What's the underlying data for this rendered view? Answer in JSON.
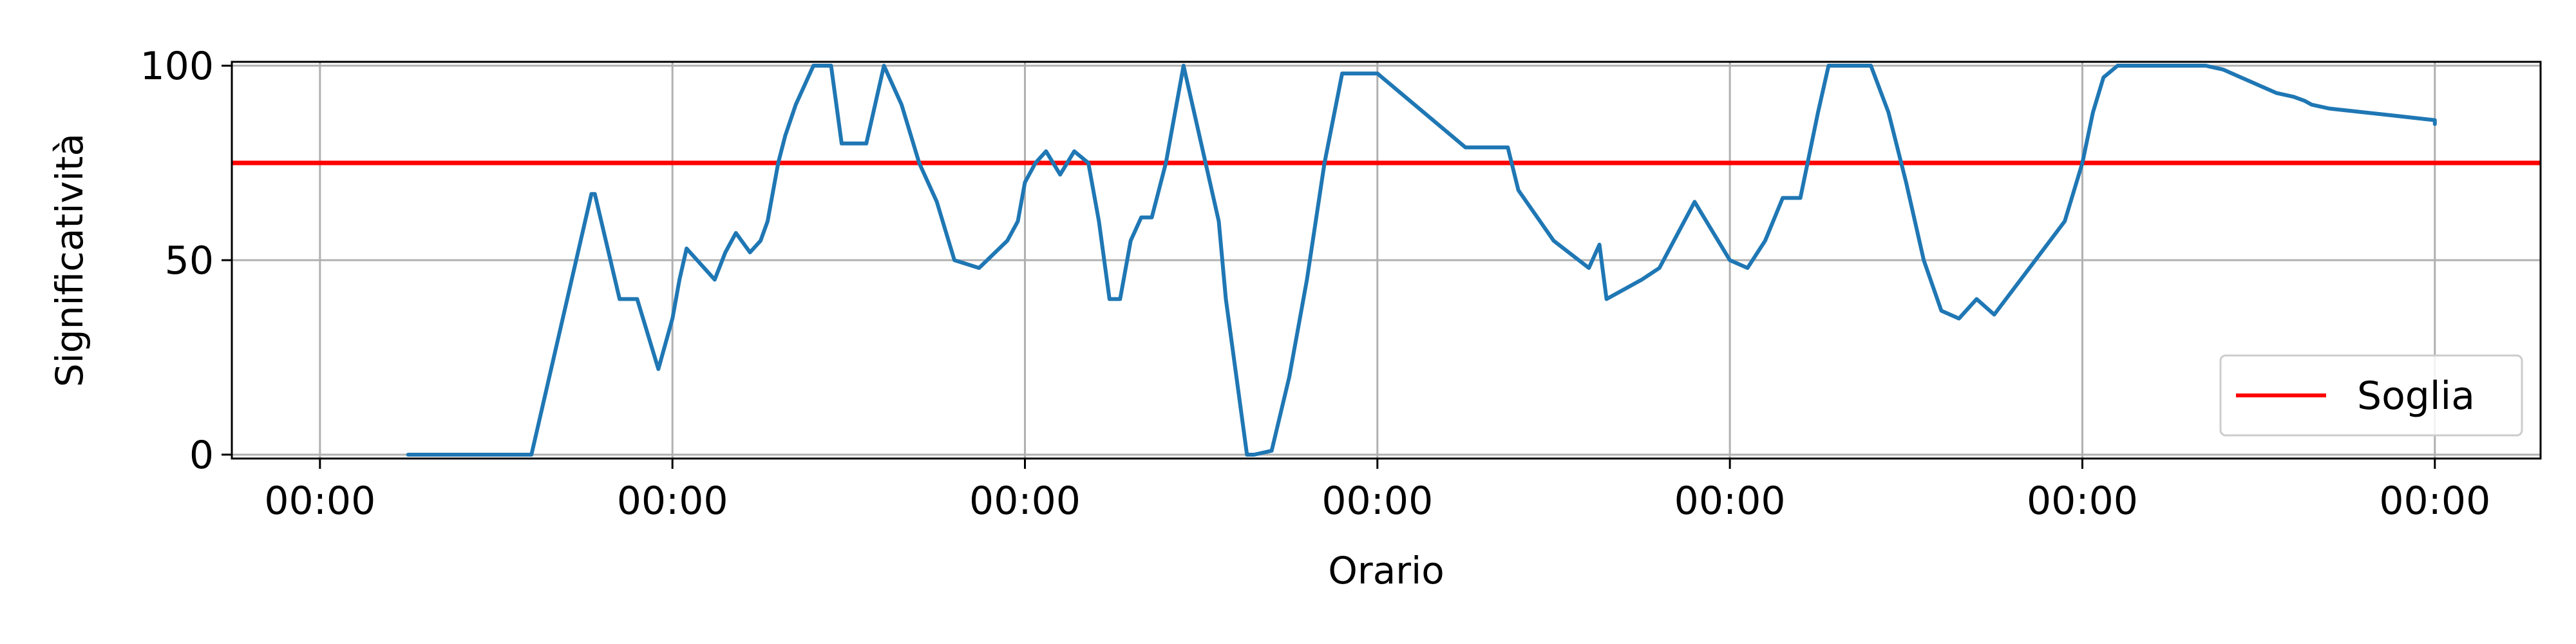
{
  "chart_data": {
    "type": "line",
    "title": "",
    "xlabel": "Orario",
    "ylabel": "Significatività",
    "ylim": [
      -1,
      101
    ],
    "yticks": [
      0,
      50,
      100
    ],
    "xlim": [
      -0.25,
      6.3
    ],
    "x_tick_positions": [
      0,
      1,
      2,
      3,
      4,
      5,
      6
    ],
    "x_tick_labels": [
      "00:00",
      "00:00",
      "00:00",
      "00:00",
      "00:00",
      "00:00",
      "00:00"
    ],
    "grid": true,
    "legend": {
      "position": "bottom-right",
      "entries": [
        "Soglia"
      ]
    },
    "threshold": {
      "name": "Soglia",
      "value": 75,
      "color": "#ff0000"
    },
    "series": [
      {
        "color": "#1f77b4",
        "x": [
          0.25,
          0.6,
          0.77,
          0.78,
          0.85,
          0.9,
          0.96,
          1.0,
          1.02,
          1.04,
          1.07,
          1.12,
          1.15,
          1.18,
          1.22,
          1.25,
          1.27,
          1.3,
          1.32,
          1.35,
          1.4,
          1.45,
          1.48,
          1.5,
          1.55,
          1.6,
          1.65,
          1.7,
          1.75,
          1.8,
          1.87,
          1.95,
          1.98,
          2.0,
          2.03,
          2.06,
          2.1,
          2.14,
          2.18,
          2.21,
          2.24,
          2.27,
          2.3,
          2.33,
          2.36,
          2.4,
          2.45,
          2.5,
          2.55,
          2.57,
          2.6,
          2.63,
          2.65,
          2.7,
          2.75,
          2.8,
          2.85,
          2.9,
          3.0,
          3.25,
          3.37,
          3.4,
          3.5,
          3.6,
          3.63,
          3.65,
          3.75,
          3.8,
          3.9,
          4.0,
          4.05,
          4.1,
          4.15,
          4.2,
          4.25,
          4.28,
          4.3,
          4.35,
          4.4,
          4.45,
          4.5,
          4.55,
          4.6,
          4.65,
          4.7,
          4.75,
          4.85,
          4.95,
          5.0,
          5.03,
          5.06,
          5.1,
          5.13,
          5.16,
          5.2,
          5.23,
          5.26,
          5.3,
          5.35,
          5.4,
          5.45,
          5.5,
          5.55,
          5.6,
          5.63,
          5.65,
          5.7,
          5.8,
          5.9,
          6.0,
          6.0
        ],
        "y": [
          0,
          0,
          67,
          67,
          40,
          40,
          22,
          35,
          45,
          53,
          50,
          45,
          52,
          57,
          52,
          55,
          60,
          75,
          82,
          90,
          100,
          100,
          80,
          80,
          80,
          100,
          90,
          75,
          65,
          50,
          48,
          55,
          60,
          70,
          75,
          78,
          72,
          78,
          75,
          60,
          40,
          40,
          55,
          61,
          61,
          75,
          100,
          80,
          60,
          40,
          20,
          0,
          0,
          1,
          20,
          45,
          75,
          98,
          98,
          79,
          79,
          68,
          55,
          48,
          54,
          40,
          45,
          48,
          65,
          50,
          48,
          55,
          66,
          66,
          88,
          100,
          100,
          100,
          100,
          88,
          70,
          50,
          37,
          35,
          40,
          36,
          48,
          60,
          75,
          88,
          97,
          100,
          100,
          100,
          100,
          100,
          100,
          100,
          100,
          99,
          97,
          95,
          93,
          92,
          91,
          90,
          89,
          88,
          87,
          86,
          85
        ]
      }
    ]
  }
}
